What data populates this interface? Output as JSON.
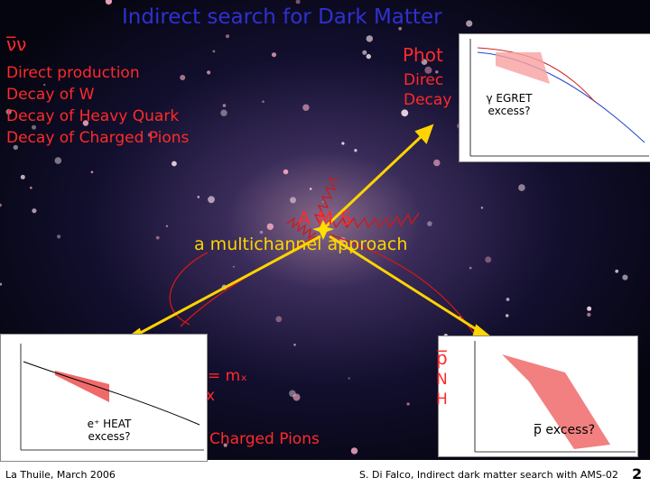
{
  "header": {
    "title": "Indirect search for Dark Matter"
  },
  "neutrinos": {
    "label": "ν̅ν",
    "items": [
      "Direct production",
      "Decay of W",
      "Decay of Heavy Quark",
      "Decay of Charged Pions"
    ]
  },
  "photons": {
    "label": "Phot",
    "items": [
      "Direc",
      "Decay"
    ],
    "plot_note": "γ EGRET excess?"
  },
  "center": {
    "label": "AMS",
    "subtitle": "a multichannel approach"
  },
  "positrons": {
    "plot_note": "e⁺ HEAT excess?",
    "fragments": [
      "= mₓ",
      "x",
      "Charged Pions"
    ]
  },
  "antiprotons": {
    "label": "p̅",
    "fragments": [
      "N",
      "H"
    ],
    "plot_note": "p̅ excess?"
  },
  "footer": {
    "left": "La Thuile, March 2006",
    "center": "S. Di Falco, Indirect dark matter search with AMS-02",
    "page": "2"
  }
}
